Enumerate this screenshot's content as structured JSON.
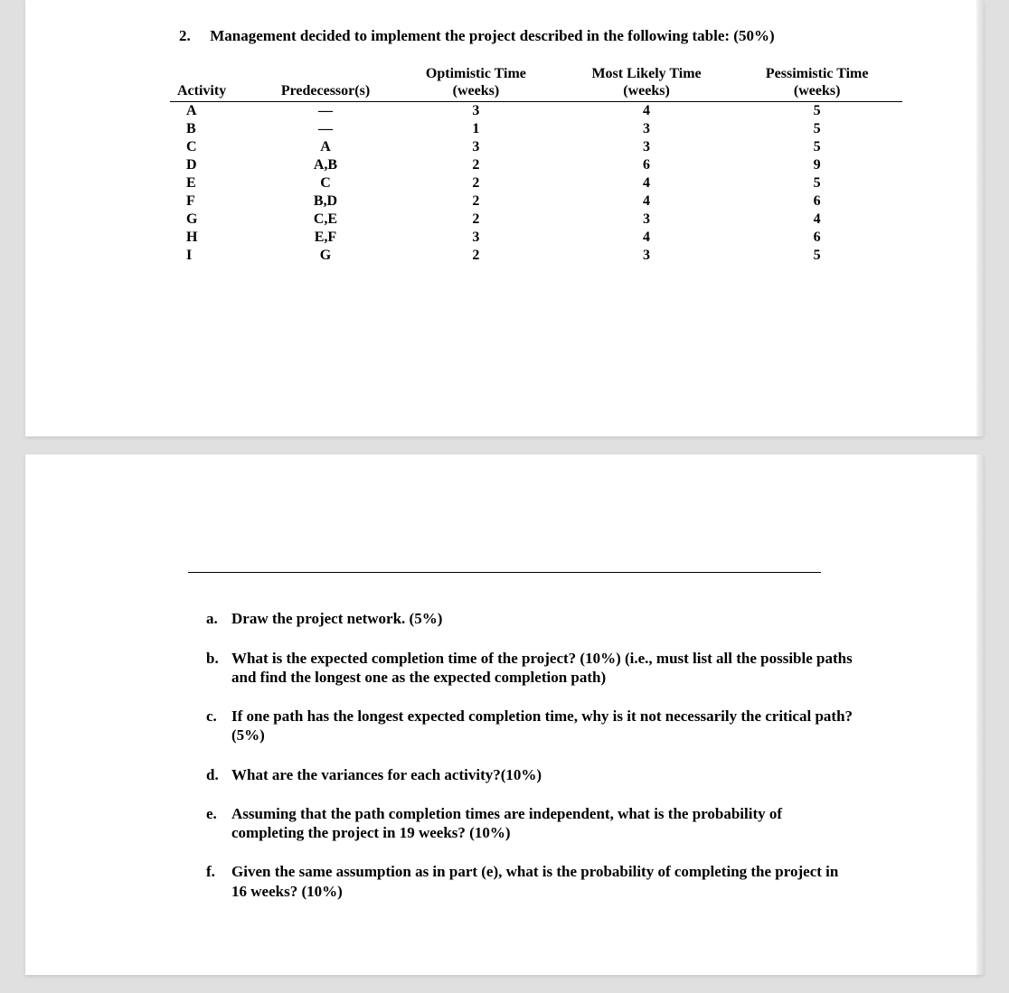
{
  "question": {
    "number": "2.",
    "text": "Management decided to implement the project described in the following table: (50%)"
  },
  "table": {
    "headers": {
      "activity": "Activity",
      "predecessor": "Predecessor(s)",
      "optimistic_line1": "Optimistic Time",
      "optimistic_line2": "(weeks)",
      "mostlikely_line1": "Most Likely Time",
      "mostlikely_line2": "(weeks)",
      "pessimistic_line1": "Pessimistic Time",
      "pessimistic_line2": "(weeks)"
    },
    "rows": [
      {
        "activity": "A",
        "pred": "—",
        "opt": "3",
        "ml": "4",
        "pes": "5"
      },
      {
        "activity": "B",
        "pred": "—",
        "opt": "1",
        "ml": "3",
        "pes": "5"
      },
      {
        "activity": "C",
        "pred": "A",
        "opt": "3",
        "ml": "3",
        "pes": "5"
      },
      {
        "activity": "D",
        "pred": "A,B",
        "opt": "2",
        "ml": "6",
        "pes": "9"
      },
      {
        "activity": "E",
        "pred": "C",
        "opt": "2",
        "ml": "4",
        "pes": "5"
      },
      {
        "activity": "F",
        "pred": "B,D",
        "opt": "2",
        "ml": "4",
        "pes": "6"
      },
      {
        "activity": "G",
        "pred": "C,E",
        "opt": "2",
        "ml": "3",
        "pes": "4"
      },
      {
        "activity": "H",
        "pred": "E,F",
        "opt": "3",
        "ml": "4",
        "pes": "6"
      },
      {
        "activity": "I",
        "pred": "G",
        "opt": "2",
        "ml": "3",
        "pes": "5"
      }
    ]
  },
  "sub": {
    "a": {
      "letter": "a.",
      "text": "Draw the project network. (5%)"
    },
    "b": {
      "letter": "b.",
      "text": "What is the expected completion time of the project? (10%) (i.e., must list all the possible paths and find the longest one as the expected completion path)"
    },
    "c": {
      "letter": "c.",
      "text": "If one path has the longest expected completion time, why is it not necessarily the critical path? (5%)"
    },
    "d": {
      "letter": "d.",
      "text": "What are the variances for each activity?(10%)"
    },
    "e": {
      "letter": "e.",
      "text": "Assuming that the path completion times are independent, what is the probability of completing the project in 19 weeks? (10%)"
    },
    "f": {
      "letter": "f.",
      "text": "Given the same assumption as in part (e), what is the probability of completing the project in 16 weeks? (10%)"
    }
  }
}
